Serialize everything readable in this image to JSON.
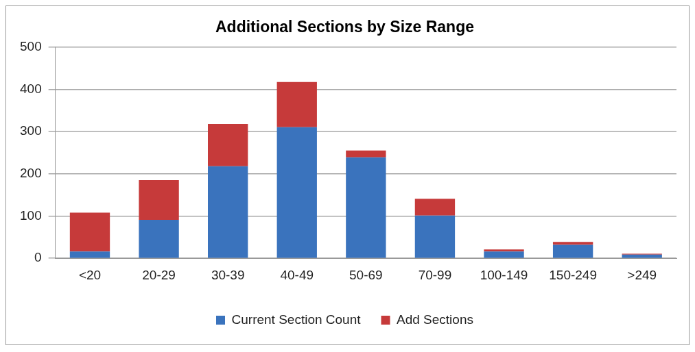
{
  "chart_data": {
    "type": "bar",
    "title": "Additional Sections by Size Range",
    "categories": [
      "<20",
      "20-29",
      "30-39",
      "40-49",
      "50-69",
      "70-99",
      "100-149",
      "150-249",
      ">249"
    ],
    "series": [
      {
        "name": "Current Section Count",
        "color": "#3a73bd",
        "values": [
          16,
          91,
          218,
          310,
          239,
          101,
          16,
          32,
          9
        ]
      },
      {
        "name": "Add Sections",
        "color": "#c63a3a",
        "values": [
          92,
          94,
          100,
          107,
          16,
          40,
          5,
          7,
          2
        ]
      }
    ],
    "stacked": true,
    "ylim": [
      0,
      500
    ],
    "yticks": [
      0,
      100,
      200,
      300,
      400,
      500
    ],
    "grid": "y",
    "legend": "bottom"
  }
}
